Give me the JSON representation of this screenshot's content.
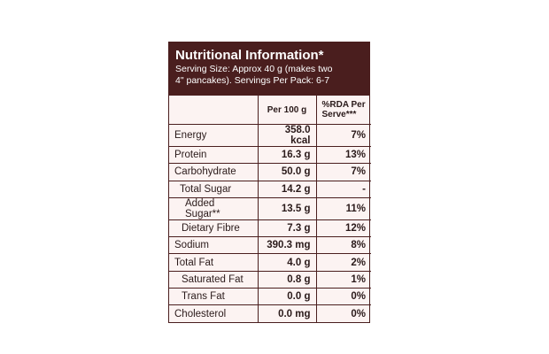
{
  "header": {
    "title": "Nutritional Information*",
    "subtitle_lines": [
      "Serving Size: Approx 40 g (makes two",
      "4\" pancakes). Servings Per Pack: 6-7"
    ]
  },
  "table": {
    "columns": [
      "",
      "Per 100 g",
      "%RDA Per Serve***"
    ],
    "rows": [
      [
        "Energy",
        "358.0 kcal",
        "7%"
      ],
      [
        "Protein",
        "16.3 g",
        "13%"
      ],
      [
        "Carbohydrate",
        "50.0 g",
        "7%"
      ],
      [
        "Total Sugar",
        "14.2 g",
        "-"
      ],
      [
        "Added Sugar**",
        "13.5 g",
        "11%"
      ],
      [
        "Dietary Fibre",
        "7.3 g",
        "12%"
      ],
      [
        "Sodium",
        "390.3 mg",
        "8%"
      ],
      [
        "Total Fat",
        "4.0 g",
        "2%"
      ],
      [
        "Saturated Fat",
        "0.8 g",
        "1%"
      ],
      [
        "Trans Fat",
        "0.0 g",
        "0%"
      ],
      [
        "Cholesterol",
        "0.0 mg",
        "0%"
      ]
    ]
  }
}
